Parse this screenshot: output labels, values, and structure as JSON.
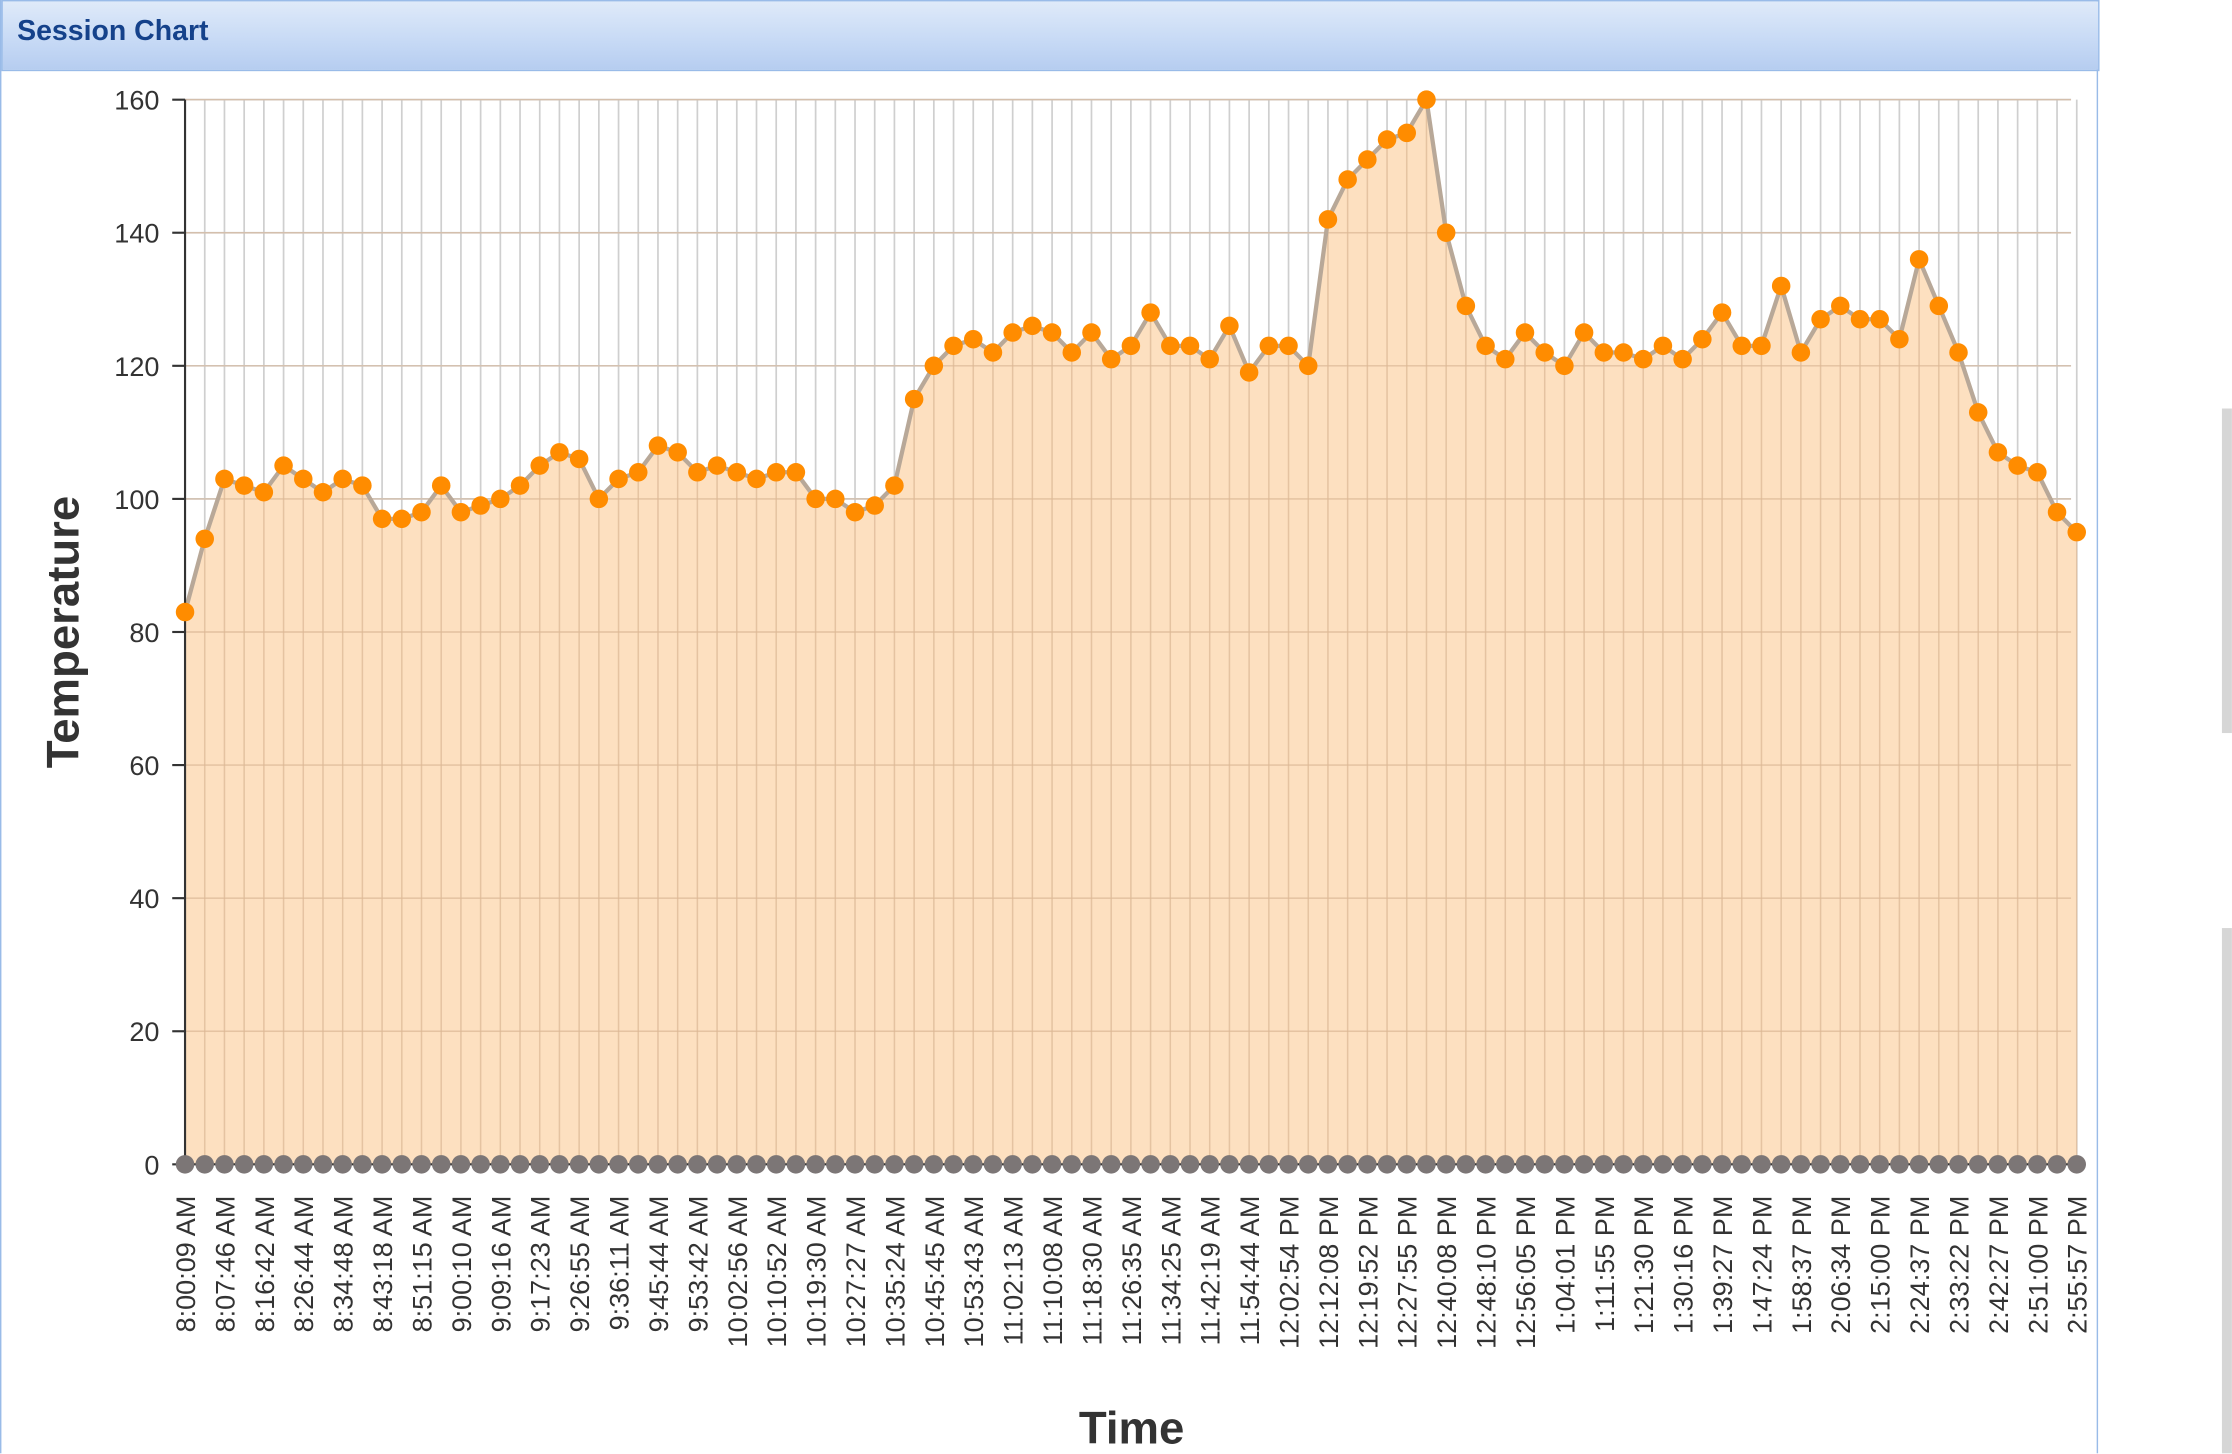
{
  "panel": {
    "title": "Session Chart"
  },
  "colors": {
    "line": "#b8a898",
    "fill": "#fcd8b0",
    "marker": "#ff8c00",
    "marker_zero": "#7c7676",
    "grid": "#cfcfcf"
  },
  "chart_data": {
    "type": "area",
    "xlabel": "Time",
    "ylabel": "Temperature",
    "ylim": [
      0,
      160
    ],
    "yticks": [
      0,
      20,
      40,
      60,
      80,
      100,
      120,
      140,
      160
    ],
    "grid": true,
    "x_tick_labels": [
      "8:00:09 AM",
      "8:07:46 AM",
      "8:16:42 AM",
      "8:26:44 AM",
      "8:34:48 AM",
      "8:43:18 AM",
      "8:51:15 AM",
      "9:00:10 AM",
      "9:09:16 AM",
      "9:17:23 AM",
      "9:26:55 AM",
      "9:36:11 AM",
      "9:45:44 AM",
      "9:53:42 AM",
      "10:02:56 AM",
      "10:10:52 AM",
      "10:19:30 AM",
      "10:27:27 AM",
      "10:35:24 AM",
      "10:45:45 AM",
      "10:53:43 AM",
      "11:02:13 AM",
      "11:10:08 AM",
      "11:18:30 AM",
      "11:26:35 AM",
      "11:34:25 AM",
      "11:42:19 AM",
      "11:54:44 AM",
      "12:02:54 PM",
      "12:12:08 PM",
      "12:19:52 PM",
      "12:27:55 PM",
      "12:40:08 PM",
      "12:48:10 PM",
      "12:56:05 PM",
      "1:04:01 PM",
      "1:11:55 PM",
      "1:21:30 PM",
      "1:30:16 PM",
      "1:39:27 PM",
      "1:47:24 PM",
      "1:58:37 PM",
      "2:06:34 PM",
      "2:15:00 PM",
      "2:24:37 PM",
      "2:33:22 PM",
      "2:42:27 PM",
      "2:51:00 PM",
      "2:55:57 PM"
    ],
    "series": [
      {
        "values": [
          83,
          94,
          103,
          102,
          101,
          105,
          103,
          101,
          103,
          102,
          97,
          97,
          98,
          102,
          98,
          99,
          100,
          102,
          105,
          107,
          106,
          100,
          103,
          104,
          108,
          107,
          104,
          105,
          104,
          103,
          104,
          104,
          100,
          100,
          98,
          99,
          102,
          115,
          120,
          123,
          124,
          122,
          125,
          126,
          125,
          122,
          125,
          121,
          123,
          128,
          123,
          123,
          121,
          126,
          119,
          123,
          123,
          120,
          142,
          148,
          151,
          154,
          155,
          160,
          140,
          129,
          123,
          121,
          125,
          122,
          120,
          125,
          122,
          122,
          121,
          123,
          121,
          124,
          128,
          123,
          123,
          132,
          122,
          127,
          129,
          127,
          127,
          124,
          136,
          129,
          122,
          113,
          107,
          105,
          104,
          98,
          95
        ]
      },
      {
        "values": [
          0,
          0,
          0,
          0,
          0,
          0,
          0,
          0,
          0,
          0,
          0,
          0,
          0,
          0,
          0,
          0,
          0,
          0,
          0,
          0,
          0,
          0,
          0,
          0,
          0,
          0,
          0,
          0,
          0,
          0,
          0,
          0,
          0,
          0,
          0,
          0,
          0,
          0,
          0,
          0,
          0,
          0,
          0,
          0,
          0,
          0,
          0,
          0,
          0,
          0,
          0,
          0,
          0,
          0,
          0,
          0,
          0,
          0,
          0,
          0,
          0,
          0,
          0,
          0,
          0,
          0,
          0,
          0,
          0,
          0,
          0,
          0,
          0,
          0,
          0,
          0,
          0,
          0,
          0,
          0,
          0,
          0,
          0,
          0,
          0,
          0,
          0,
          0,
          0,
          0,
          0,
          0,
          0,
          0,
          0,
          0,
          0
        ]
      }
    ]
  }
}
